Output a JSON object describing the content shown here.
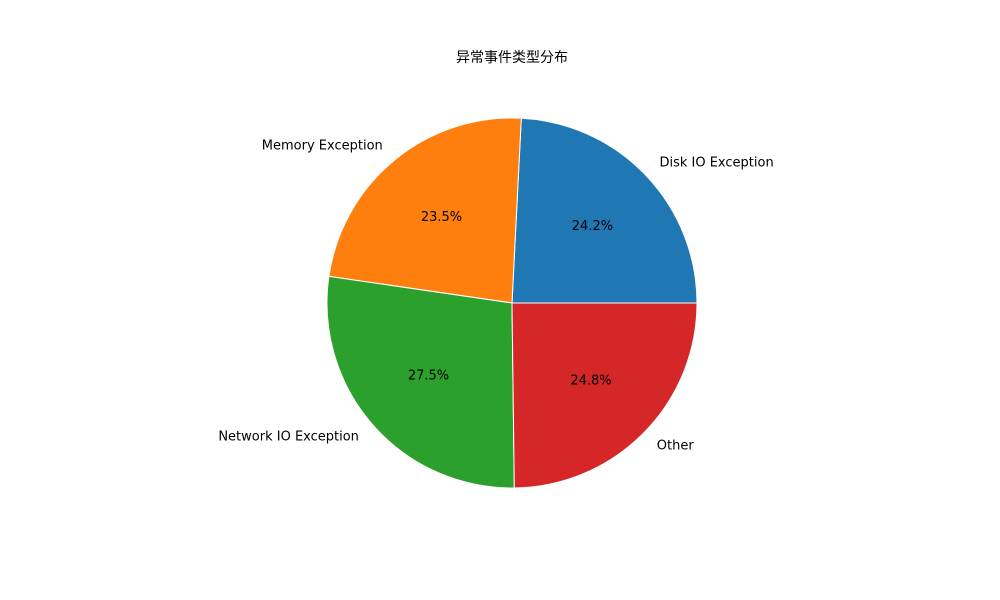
{
  "chart_data": {
    "type": "pie",
    "title": "异常事件类型分布",
    "categories": [
      "Disk IO Exception",
      "Memory Exception",
      "Network IO Exception",
      "Other"
    ],
    "values": [
      24.2,
      23.5,
      27.5,
      24.8
    ],
    "labels_percent": [
      "24.2%",
      "23.5%",
      "27.5%",
      "24.8%"
    ],
    "colors": [
      "#1f77b4",
      "#ff7f0e",
      "#2ca02c",
      "#d62728"
    ],
    "start_angle_deg": 0,
    "direction": "counterclockwise",
    "legend": "none"
  }
}
